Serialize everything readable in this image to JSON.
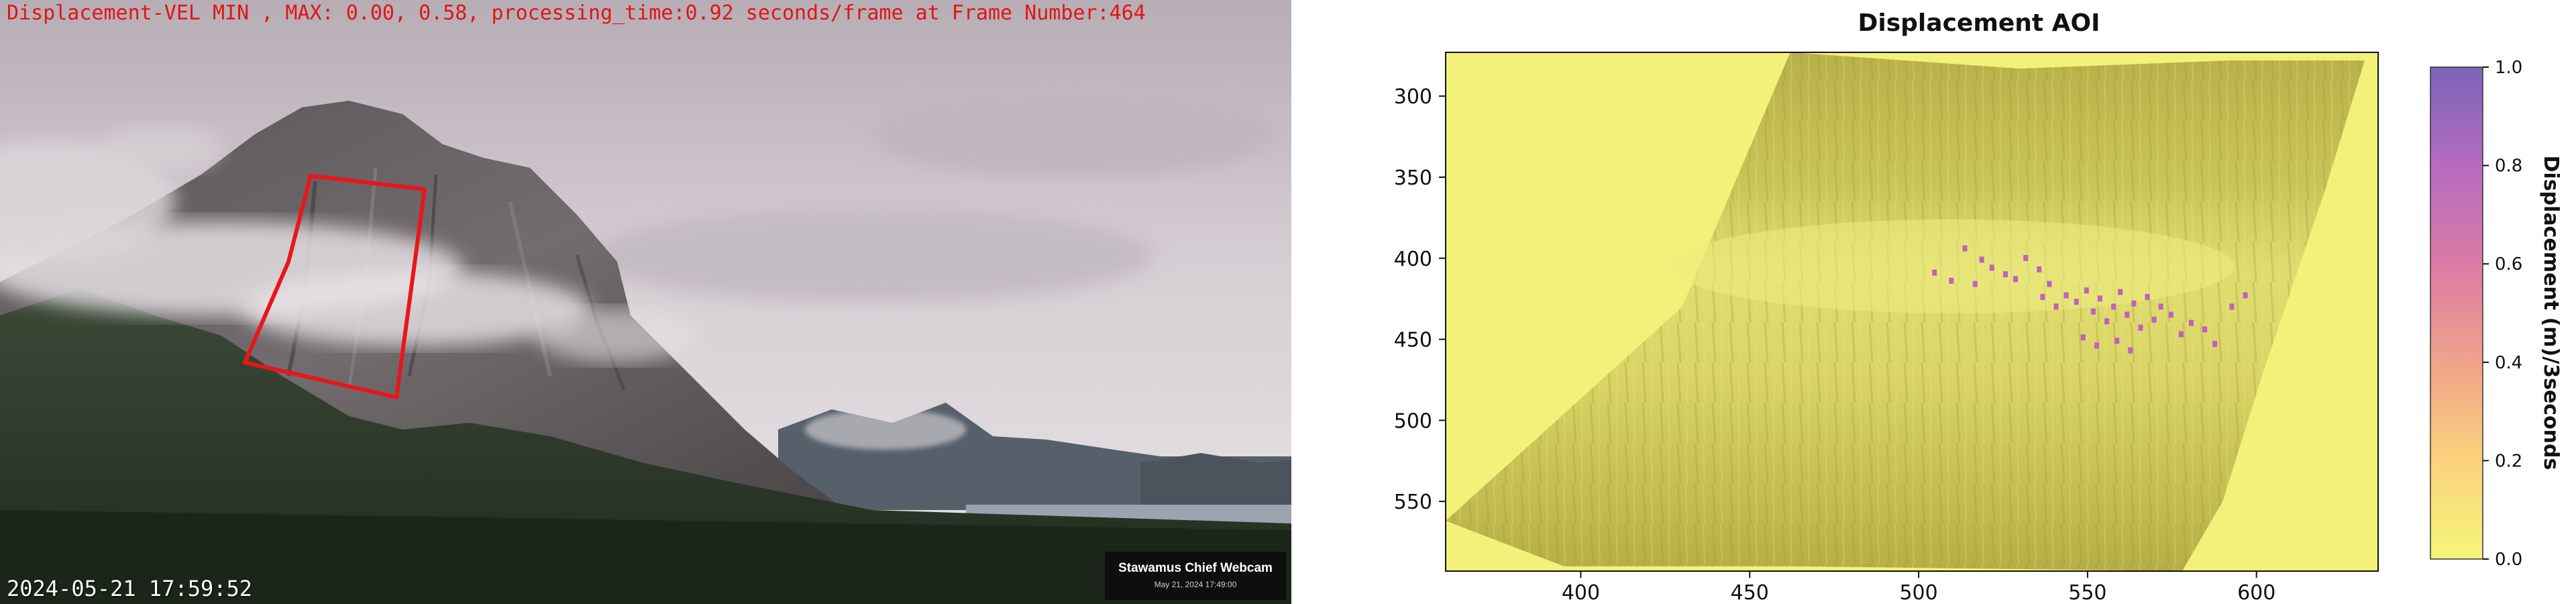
{
  "webcam": {
    "overlay_text": "Displacement-VEL MIN , MAX: 0.00, 0.58, processing_time:0.92 seconds/frame at Frame Number:464",
    "timestamp": "2024-05-21 17:59:52",
    "watermark_name": "Stawamus Chief Webcam",
    "watermark_date": "May 21, 2024 17:49:00",
    "aoi_color": "#e8161b"
  },
  "chart_data": {
    "type": "heatmap",
    "title": "Displacement AOI",
    "xlabel": "",
    "ylabel": "",
    "x_ticks": [
      400,
      450,
      500,
      550,
      600
    ],
    "y_ticks": [
      300,
      350,
      400,
      450,
      500,
      550
    ],
    "xlim": [
      360,
      636
    ],
    "ylim": [
      273,
      593
    ],
    "colorbar": {
      "label": "Displacement (m)/3seconds",
      "ticks": [
        "0.0",
        "0.2",
        "0.4",
        "0.6",
        "0.8",
        "1.0"
      ],
      "range": [
        0.0,
        1.0
      ],
      "colors": [
        "#f5f57a",
        "#fbd27c",
        "#f0a38a",
        "#db7aa6",
        "#b56bc0",
        "#7b64b8"
      ]
    },
    "hotspots": [
      {
        "x": 513,
        "y": 392
      },
      {
        "x": 518,
        "y": 399
      },
      {
        "x": 521,
        "y": 404
      },
      {
        "x": 525,
        "y": 408
      },
      {
        "x": 528,
        "y": 411
      },
      {
        "x": 531,
        "y": 398
      },
      {
        "x": 535,
        "y": 405
      },
      {
        "x": 538,
        "y": 414
      },
      {
        "x": 543,
        "y": 421
      },
      {
        "x": 546,
        "y": 425
      },
      {
        "x": 549,
        "y": 418
      },
      {
        "x": 551,
        "y": 431
      },
      {
        "x": 553,
        "y": 423
      },
      {
        "x": 555,
        "y": 437
      },
      {
        "x": 557,
        "y": 428
      },
      {
        "x": 559,
        "y": 419
      },
      {
        "x": 561,
        "y": 433
      },
      {
        "x": 563,
        "y": 426
      },
      {
        "x": 565,
        "y": 441
      },
      {
        "x": 567,
        "y": 422
      },
      {
        "x": 569,
        "y": 436
      },
      {
        "x": 571,
        "y": 428
      },
      {
        "x": 574,
        "y": 433
      },
      {
        "x": 577,
        "y": 445
      },
      {
        "x": 580,
        "y": 438
      },
      {
        "x": 584,
        "y": 442
      },
      {
        "x": 548,
        "y": 447
      },
      {
        "x": 552,
        "y": 452
      },
      {
        "x": 558,
        "y": 449
      },
      {
        "x": 562,
        "y": 455
      },
      {
        "x": 540,
        "y": 428
      },
      {
        "x": 536,
        "y": 422
      },
      {
        "x": 504,
        "y": 407
      },
      {
        "x": 509,
        "y": 412
      },
      {
        "x": 516,
        "y": 414
      },
      {
        "x": 592,
        "y": 428
      },
      {
        "x": 596,
        "y": 421
      },
      {
        "x": 587,
        "y": 451
      }
    ],
    "hotspot_color": "#c25fc0"
  }
}
